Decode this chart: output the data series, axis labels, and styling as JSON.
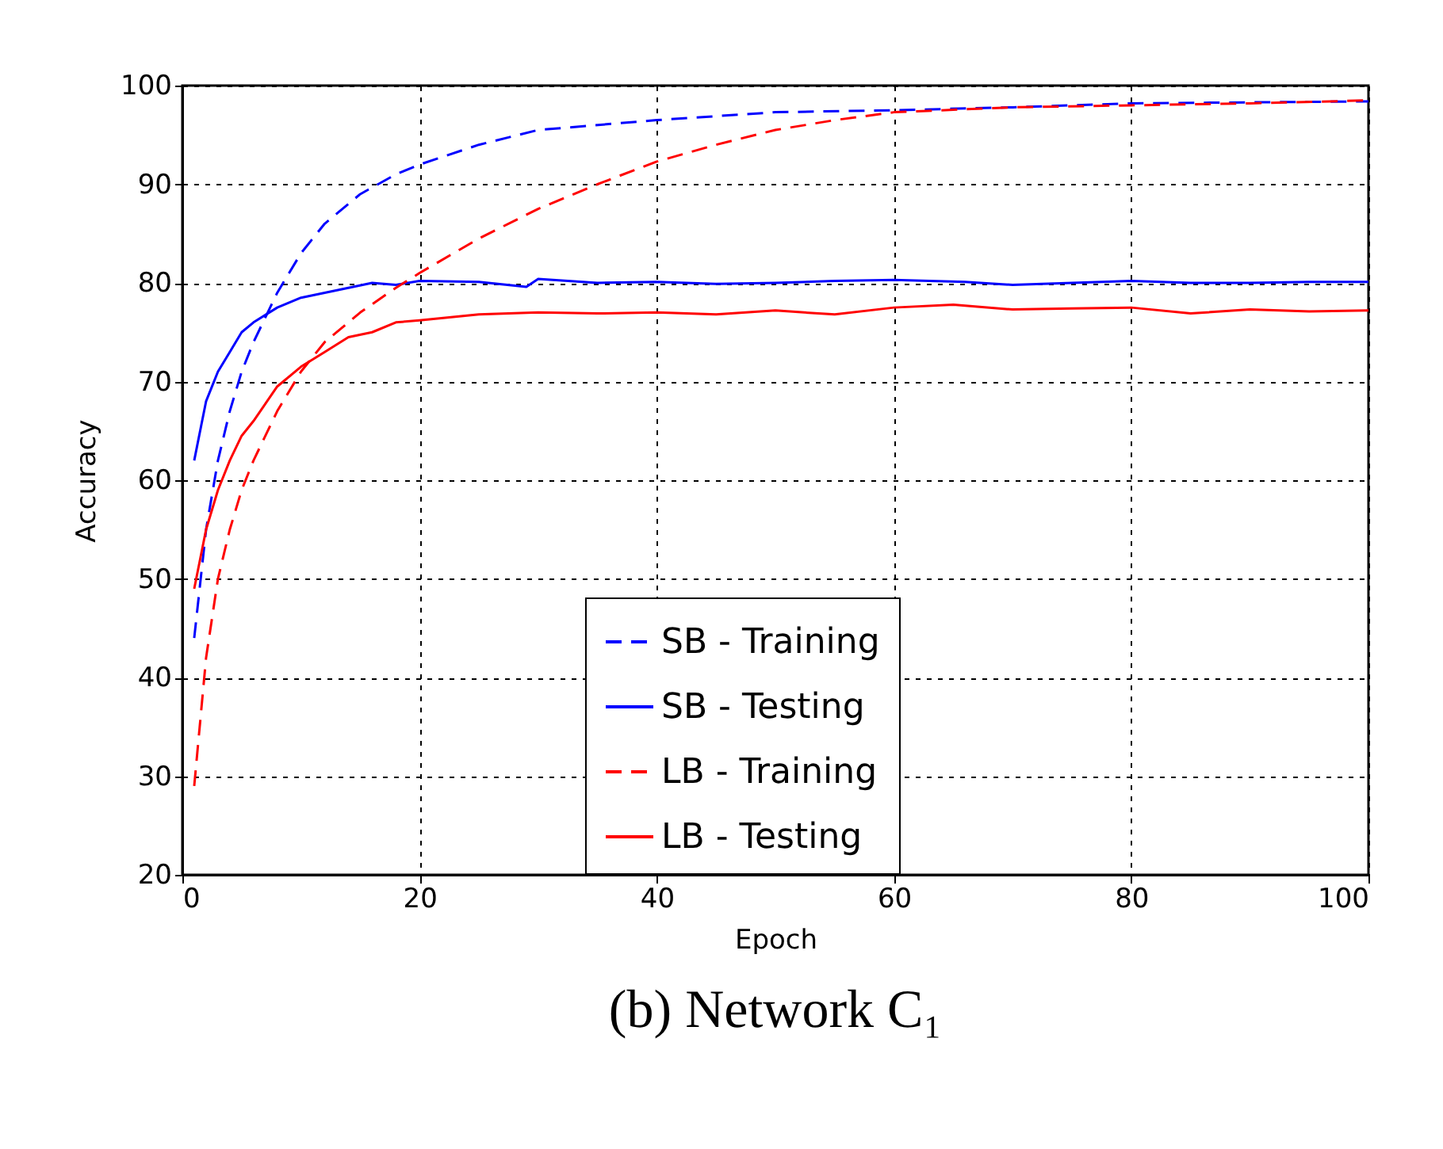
{
  "chart_data": {
    "type": "line",
    "title": "(b) Network C₁",
    "xlabel": "Epoch",
    "ylabel": "Accuracy",
    "xlim": [
      0,
      100
    ],
    "xticks": [
      0,
      20,
      40,
      60,
      80,
      100
    ],
    "ylim": [
      20,
      100
    ],
    "yticks": [
      20,
      30,
      40,
      50,
      60,
      70,
      80,
      90,
      100
    ],
    "grid": true,
    "legend": "bottom",
    "marker": "none",
    "series": [
      {
        "name": "SB - Training",
        "color": "#0000ff",
        "line_style": "dashed",
        "x": [
          1,
          2,
          3,
          4,
          5,
          6,
          8,
          10,
          12,
          15,
          18,
          20,
          25,
          30,
          40,
          50,
          60,
          70,
          80,
          90,
          100
        ],
        "values": [
          44,
          55,
          62,
          67,
          71,
          74,
          79,
          83,
          86,
          89,
          91,
          92,
          94,
          95.5,
          96.5,
          97.3,
          97.5,
          97.8,
          98.2,
          98.3,
          98.4
        ]
      },
      {
        "name": "SB - Testing",
        "color": "#0000ff",
        "line_style": "solid",
        "x": [
          1,
          2,
          3,
          4,
          5,
          6,
          8,
          10,
          12,
          14,
          16,
          18,
          20,
          25,
          29,
          30,
          35,
          40,
          45,
          50,
          55,
          60,
          66,
          70,
          75,
          80,
          85,
          90,
          95,
          100
        ],
        "values": [
          62,
          68,
          71,
          73,
          75,
          76,
          77.5,
          78.5,
          79,
          79.5,
          80,
          79.8,
          80.2,
          80.1,
          79.6,
          80.4,
          80,
          80.1,
          79.9,
          80,
          80.2,
          80.3,
          80.1,
          79.8,
          80,
          80.2,
          80,
          80,
          80.1,
          80.1
        ]
      },
      {
        "name": "LB - Training",
        "color": "#ff0000",
        "line_style": "dashed",
        "x": [
          1,
          2,
          3,
          4,
          5,
          6,
          8,
          10,
          12,
          15,
          18,
          20,
          25,
          30,
          35,
          40,
          45,
          50,
          55,
          60,
          70,
          80,
          90,
          100
        ],
        "values": [
          29,
          42,
          50,
          55,
          59,
          62,
          67,
          71,
          74,
          77,
          79.5,
          81,
          84.5,
          87.5,
          90,
          92.3,
          94,
          95.5,
          96.5,
          97.3,
          97.8,
          98,
          98.2,
          98.5
        ]
      },
      {
        "name": "LB - Testing",
        "color": "#ff0000",
        "line_style": "solid",
        "x": [
          1,
          2,
          3,
          4,
          5,
          6,
          8,
          10,
          12,
          14,
          16,
          18,
          20,
          25,
          30,
          35,
          40,
          45,
          50,
          55,
          60,
          65,
          70,
          75,
          80,
          85,
          90,
          95,
          100
        ],
        "values": [
          49,
          55,
          59,
          62,
          64.5,
          66,
          69.5,
          71.5,
          73,
          74.5,
          75,
          76,
          76.2,
          76.8,
          77,
          76.9,
          77,
          76.8,
          77.2,
          76.8,
          77.5,
          77.8,
          77.3,
          77.4,
          77.5,
          76.9,
          77.3,
          77.1,
          77.2
        ]
      }
    ]
  }
}
